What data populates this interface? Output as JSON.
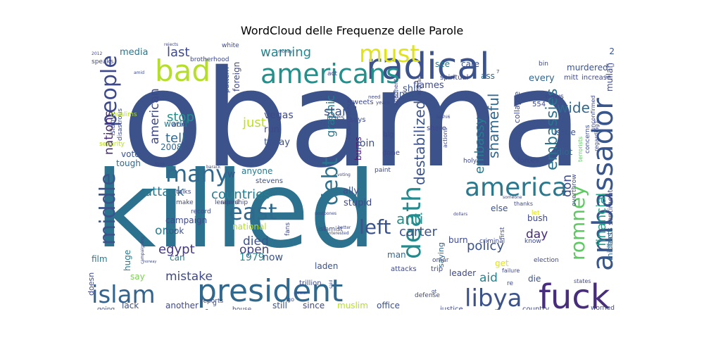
{
  "chart_data": {
    "type": "wordcloud",
    "title": "WordCloud delle Frequenze delle Parole",
    "words": [
      {
        "text": "obama",
        "weight": 100,
        "color": "#3b528b"
      },
      {
        "text": "killed",
        "weight": 95,
        "color": "#2c728e"
      },
      {
        "text": "president",
        "weight": 40,
        "color": "#31688e"
      },
      {
        "text": "radical",
        "weight": 38,
        "color": "#3b528b"
      },
      {
        "text": "americans",
        "weight": 30,
        "color": "#21918c"
      },
      {
        "text": "fuck",
        "weight": 30,
        "color": "#472d7b"
      },
      {
        "text": "ambassador",
        "weight": 28,
        "color": "#39568c"
      },
      {
        "text": "bad",
        "weight": 28,
        "color": "#b5de2b"
      },
      {
        "text": "must",
        "weight": 24,
        "color": "#dfe318"
      },
      {
        "text": "america",
        "weight": 22,
        "color": "#2a788e"
      },
      {
        "text": "death",
        "weight": 22,
        "color": "#238a8d"
      },
      {
        "text": "libya",
        "weight": 20,
        "color": "#3b528b"
      },
      {
        "text": "islam",
        "weight": 20,
        "color": "#32648e"
      },
      {
        "text": "east",
        "weight": 20,
        "color": "#31688e"
      },
      {
        "text": "many",
        "weight": 18,
        "color": "#31688e"
      },
      {
        "text": "people",
        "weight": 18,
        "color": "#3e4989"
      },
      {
        "text": "middle",
        "weight": 18,
        "color": "#3b528b"
      },
      {
        "text": "debt",
        "weight": 18,
        "color": "#2c728e"
      },
      {
        "text": "romney",
        "weight": 18,
        "color": "#5ec962"
      },
      {
        "text": "left",
        "weight": 18,
        "color": "#3b528b"
      },
      {
        "text": "embassies",
        "weight": 14,
        "color": "#2c728e"
      },
      {
        "text": "destabilized",
        "weight": 14,
        "color": "#3b528b"
      },
      {
        "text": "shameful",
        "weight": 14,
        "color": "#31688e"
      },
      {
        "text": "embassy",
        "weight": 13,
        "color": "#287c8e"
      },
      {
        "text": "financial",
        "weight": 13,
        "color": "#1fa088"
      },
      {
        "text": "wide",
        "weight": 13,
        "color": "#31688e"
      },
      {
        "text": "anti",
        "weight": 12,
        "color": "#21918c"
      },
      {
        "text": "policy",
        "weight": 12,
        "color": "#3b528b"
      },
      {
        "text": "countries",
        "weight": 12,
        "color": "#287c8e"
      },
      {
        "text": "attack",
        "weight": 12,
        "color": "#2a788e"
      },
      {
        "text": "egypt",
        "weight": 12,
        "color": "#453781"
      },
      {
        "text": "carter",
        "weight": 11,
        "color": "#3b528b"
      },
      {
        "text": "nations",
        "weight": 11,
        "color": "#482878"
      },
      {
        "text": "american",
        "weight": 11,
        "color": "#3e4989"
      },
      {
        "text": "warning",
        "weight": 11,
        "color": "#25848e"
      },
      {
        "text": "last",
        "weight": 11,
        "color": "#3e4989"
      },
      {
        "text": "just",
        "weight": 11,
        "color": "#bddf26"
      },
      {
        "text": "graphic",
        "weight": 11,
        "color": "#2a788e"
      },
      {
        "text": "stand",
        "weight": 11,
        "color": "#3b528b"
      },
      {
        "text": "tell",
        "weight": 11,
        "color": "#31688e"
      },
      {
        "text": "stop",
        "weight": 11,
        "color": "#21918c"
      },
      {
        "text": "mistake",
        "weight": 11,
        "color": "#3e4989"
      },
      {
        "text": "aid",
        "weight": 11,
        "color": "#26828e"
      },
      {
        "text": "day",
        "weight": 11,
        "color": "#482878"
      },
      {
        "text": "don",
        "weight": 11,
        "color": "#3e4989"
      },
      {
        "text": "died",
        "weight": 11,
        "color": "#3b528b"
      },
      {
        "text": "one",
        "weight": 11,
        "color": "#287c8e"
      },
      {
        "text": "open",
        "weight": 11,
        "color": "#414487"
      },
      {
        "text": "mac1",
        "weight": 9,
        "color": "#2a788e"
      },
      {
        "text": "1979",
        "weight": 9,
        "color": "#23888e"
      },
      {
        "text": "now",
        "weight": 8,
        "color": "#3b528b"
      },
      {
        "text": "care",
        "weight": 8,
        "color": "#3b528b"
      },
      {
        "text": "see",
        "weight": 8,
        "color": "#2a788e"
      },
      {
        "text": "ass",
        "weight": 8,
        "color": "#31688e"
      },
      {
        "text": "every",
        "weight": 8,
        "color": "#31688e"
      },
      {
        "text": "murdered",
        "weight": 8,
        "color": "#3b528b"
      },
      {
        "text": "mullah",
        "weight": 8,
        "color": "#3e4989"
      },
      {
        "text": "media",
        "weight": 8,
        "color": "#2a788e"
      },
      {
        "text": "vegas",
        "weight": 8,
        "color": "#3e4989"
      },
      {
        "text": "burns",
        "weight": 8,
        "color": "#481a6c"
      },
      {
        "text": "join",
        "weight": 8,
        "color": "#3b528b"
      },
      {
        "text": "time",
        "weight": 8,
        "color": "#3b528b"
      },
      {
        "text": "flames",
        "weight": 8,
        "color": "#3e4989"
      },
      {
        "text": "shit",
        "weight": 8,
        "color": "#3b528b"
      },
      {
        "text": "run",
        "weight": 8,
        "color": "#3e4989"
      },
      {
        "text": "today",
        "weight": 8,
        "color": "#3b528b"
      },
      {
        "text": "world",
        "weight": 8,
        "color": "#2a788e"
      },
      {
        "text": "vote",
        "weight": 8,
        "color": "#3b528b"
      },
      {
        "text": "tough",
        "weight": 8,
        "color": "#31688e"
      },
      {
        "text": "2008",
        "weight": 8,
        "color": "#31688e"
      },
      {
        "text": "anyone",
        "weight": 8,
        "color": "#2a788e"
      },
      {
        "text": "stevens",
        "weight": 7,
        "color": "#3b528b"
      },
      {
        "text": "ally",
        "weight": 8,
        "color": "#3b528b"
      },
      {
        "text": "stupid",
        "weight": 8,
        "color": "#3e4989"
      },
      {
        "text": "campaign",
        "weight": 8,
        "color": "#3e4989"
      },
      {
        "text": "took",
        "weight": 8,
        "color": "#3b528b"
      },
      {
        "text": "can",
        "weight": 8,
        "color": "#2a788e"
      },
      {
        "text": "national",
        "weight": 8,
        "color": "#b5de2b"
      },
      {
        "text": "film",
        "weight": 8,
        "color": "#2a788e"
      },
      {
        "text": "huge",
        "weight": 8,
        "color": "#2a788e"
      },
      {
        "text": "say",
        "weight": 8,
        "color": "#7ad151"
      },
      {
        "text": "lack",
        "weight": 8,
        "color": "#3b528b"
      },
      {
        "text": "another",
        "weight": 8,
        "color": "#3e4989"
      },
      {
        "text": "still",
        "weight": 8,
        "color": "#3b528b"
      },
      {
        "text": "since",
        "weight": 8,
        "color": "#3e4989"
      },
      {
        "text": "muslim",
        "weight": 8,
        "color": "#b5de2b"
      },
      {
        "text": "office",
        "weight": 8,
        "color": "#3b528b"
      },
      {
        "text": "man",
        "weight": 8,
        "color": "#31688e"
      },
      {
        "text": "leader",
        "weight": 8,
        "color": "#3e4989"
      },
      {
        "text": "laden",
        "weight": 8,
        "color": "#3b528b"
      },
      {
        "text": "burn",
        "weight": 8,
        "color": "#3e4989"
      },
      {
        "text": "saying",
        "weight": 8,
        "color": "#31688e"
      },
      {
        "text": "else",
        "weight": 8,
        "color": "#3b528b"
      },
      {
        "text": "bush",
        "weight": 8,
        "color": "#3e4989"
      },
      {
        "text": "get",
        "weight": 8,
        "color": "#dfe318"
      },
      {
        "text": "die",
        "weight": 8,
        "color": "#3b528b"
      },
      {
        "text": "idiot",
        "weight": 8,
        "color": "#31688e"
      },
      {
        "text": "issue",
        "weight": 8,
        "color": "#3b528b"
      },
      {
        "text": "facts",
        "weight": 8,
        "color": "#31688e"
      },
      {
        "text": "mideast",
        "weight": 8,
        "color": "#31688e"
      },
      {
        "text": "collapse",
        "weight": 7,
        "color": "#3e4989"
      },
      {
        "text": "doesn",
        "weight": 7,
        "color": "#3e4989"
      },
      {
        "text": "sentiment",
        "weight": 6,
        "color": "#3e4989"
      },
      {
        "text": "2",
        "weight": 8,
        "color": "#3b528b"
      },
      {
        "text": "w",
        "weight": 8,
        "color": "#3b528b"
      },
      {
        "text": "foreign",
        "weight": 7,
        "color": "#3e4989"
      },
      {
        "text": "pattern",
        "weight": 6,
        "color": "#3b528b"
      },
      {
        "text": "spiritual",
        "weight": 5,
        "color": "#3e4989"
      },
      {
        "text": "increase",
        "weight": 5,
        "color": "#3e4989"
      },
      {
        "text": "mitt",
        "weight": 5,
        "color": "#3e4989"
      },
      {
        "text": "world",
        "weight": 5,
        "color": "#3b528b"
      },
      {
        "text": "actions",
        "weight": 4,
        "color": "#3e4989"
      },
      {
        "text": "islamic",
        "weight": 5,
        "color": "#3e4989"
      },
      {
        "text": "disastrous",
        "weight": 5,
        "color": "#3e4989"
      },
      {
        "text": "muslims",
        "weight": 4,
        "color": "#b5de2b"
      },
      {
        "text": "raped",
        "weight": 5,
        "color": "#3e4989"
      },
      {
        "text": "tweets",
        "weight": 5,
        "color": "#3e4989"
      },
      {
        "text": "says",
        "weight": 5,
        "color": "#3e4989"
      },
      {
        "text": "share",
        "weight": 5,
        "color": "#3e4989"
      },
      {
        "text": "loses",
        "weight": 5,
        "color": "#3e4989"
      },
      {
        "text": "big",
        "weight": 5,
        "color": "#3e4989"
      },
      {
        "text": "done",
        "weight": 5,
        "color": "#3e4989"
      },
      {
        "text": "talks",
        "weight": 4,
        "color": "#3e4989"
      },
      {
        "text": "make",
        "weight": 4,
        "color": "#3e4989"
      },
      {
        "text": "record",
        "weight": 4,
        "color": "#3e4989"
      },
      {
        "text": "leadership",
        "weight": 4,
        "color": "#3e4989"
      },
      {
        "text": "paint",
        "weight": 4,
        "color": "#3e4989"
      },
      {
        "text": "holy",
        "weight": 4,
        "color": "#3e4989"
      },
      {
        "text": "forces",
        "weight": 5,
        "color": "#3e4989"
      },
      {
        "text": "concerns",
        "weight": 4,
        "color": "#3e4989"
      },
      {
        "text": "regarding",
        "weight": 4,
        "color": "#3e4989"
      },
      {
        "text": "unconfirmed",
        "weight": 4,
        "color": "#3e4989"
      },
      {
        "text": "terrorists",
        "weight": 4,
        "color": "#5ec962"
      },
      {
        "text": "overthrow",
        "weight": 4,
        "color": "#3e4989"
      },
      {
        "text": "news",
        "weight": 5,
        "color": "#3e4989"
      },
      {
        "text": "554",
        "weight": 5,
        "color": "#3e4989"
      },
      {
        "text": "thanks",
        "weight": 3,
        "color": "#3e4989"
      },
      {
        "text": "let",
        "weight": 4,
        "color": "#dfe318"
      },
      {
        "text": "first",
        "weight": 4,
        "color": "#3e4989"
      },
      {
        "text": "know",
        "weight": 4,
        "color": "#3e4989"
      },
      {
        "text": "election",
        "weight": 4,
        "color": "#3e4989"
      },
      {
        "text": "failure",
        "weight": 3,
        "color": "#3e4989"
      },
      {
        "text": "states",
        "weight": 3,
        "color": "#3e4989"
      },
      {
        "text": "worried",
        "weight": 4,
        "color": "#3e4989"
      },
      {
        "text": "country",
        "weight": 5,
        "color": "#3e4989"
      },
      {
        "text": "justice",
        "weight": 5,
        "color": "#3e4989"
      },
      {
        "text": "criminal",
        "weight": 4,
        "color": "#3e4989"
      },
      {
        "text": "attacks",
        "weight": 5,
        "color": "#3e4989"
      },
      {
        "text": "trip",
        "weight": 5,
        "color": "#3e4989"
      },
      {
        "text": "omar",
        "weight": 4,
        "color": "#3e4989"
      },
      {
        "text": "defense",
        "weight": 4,
        "color": "#3e4989"
      },
      {
        "text": "trillion",
        "weight": 5,
        "color": "#3e4989"
      },
      {
        "text": "fans",
        "weight": 4,
        "color": "#3e4989"
      },
      {
        "text": "islamist",
        "weight": 4,
        "color": "#3e4989"
      },
      {
        "text": "house",
        "weight": 4,
        "color": "#3e4989"
      },
      {
        "text": "reports",
        "weight": 4,
        "color": "#3e4989"
      },
      {
        "text": "going",
        "weight": 4,
        "color": "#3e4989"
      },
      {
        "text": "security",
        "weight": 4,
        "color": "#b5de2b"
      },
      {
        "text": "white",
        "weight": 4,
        "color": "#3e4989"
      },
      {
        "text": "brotherhood",
        "weight": 4,
        "color": "#3e4989"
      },
      {
        "text": "act",
        "weight": 5,
        "color": "#3e4989"
      },
      {
        "text": "speaks",
        "weight": 4,
        "color": "#3e4989"
      },
      {
        "text": "opponent",
        "weight": 3,
        "color": "#3e4989"
      },
      {
        "text": "afghan",
        "weight": 3,
        "color": "#3e4989"
      },
      {
        "text": "bin",
        "weight": 4,
        "color": "#3e4989"
      },
      {
        "text": "incompetence",
        "weight": 4,
        "color": "#3e4989"
      },
      {
        "text": "money",
        "weight": 3,
        "color": "#3e4989"
      },
      {
        "text": "need",
        "weight": 3,
        "color": "#3e4989"
      },
      {
        "text": "years",
        "weight": 3,
        "color": "#3e4989"
      },
      {
        "text": "voting",
        "weight": 3,
        "color": "#3e4989"
      },
      {
        "text": "barack",
        "weight": 3,
        "color": "#3e4989"
      },
      {
        "text": "campaigning",
        "weight": 3,
        "color": "#3e4989"
      },
      {
        "text": "someone",
        "weight": 3,
        "color": "#3e4989"
      },
      {
        "text": "postpones",
        "weight": 3,
        "color": "#3e4989"
      },
      {
        "text": "better",
        "weight": 3,
        "color": "#3e4989"
      },
      {
        "text": "interested",
        "weight": 3,
        "color": "#3e4989"
      },
      {
        "text": "dollars",
        "weight": 3,
        "color": "#3e4989"
      },
      {
        "text": "power",
        "weight": 3,
        "color": "#3e4989"
      },
      {
        "text": "rejects",
        "weight": 3,
        "color": "#3e4989"
      },
      {
        "text": "2012",
        "weight": 3,
        "color": "#3e4989"
      },
      {
        "text": "amid",
        "weight": 3,
        "color": "#3e4989"
      },
      {
        "text": "norway",
        "weight": 3,
        "color": "#3e4989"
      },
      {
        "text": "kashi6",
        "weight": 3,
        "color": "#3e4989"
      },
      {
        "text": "go",
        "weight": 4,
        "color": "#3e4989"
      },
      {
        "text": "said",
        "weight": 3,
        "color": "#3e4989"
      },
      {
        "text": "look",
        "weight": 3,
        "color": "#3e4989"
      },
      {
        "text": "re",
        "weight": 4,
        "color": "#3e4989"
      },
      {
        "text": "sc",
        "weight": 3,
        "color": "#3e4989"
      },
      {
        "text": "3",
        "weight": 3,
        "color": "#3e4989"
      },
      {
        "text": "7",
        "weight": 3,
        "color": "#3e4989"
      },
      {
        "text": "g",
        "weight": 4,
        "color": "#3e4989"
      },
      {
        "text": "gt",
        "weight": 3,
        "color": "#3e4989"
      }
    ]
  }
}
